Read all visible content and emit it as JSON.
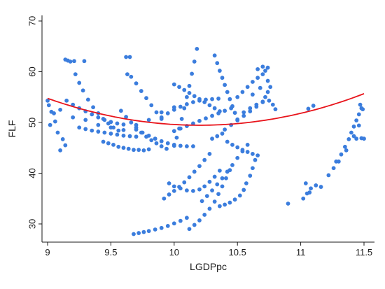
{
  "chart_data": {
    "type": "scatter",
    "title": "",
    "xlabel": "LGDPpc",
    "ylabel": "FLF",
    "xlim": [
      9,
      11.5
    ],
    "ylim": [
      27,
      70
    ],
    "xticks": [
      9,
      9.5,
      10,
      10.5,
      11,
      11.5
    ],
    "yticks": [
      30,
      40,
      50,
      60,
      70
    ],
    "grid": false,
    "legend": "none",
    "colors": {
      "points": "#3b7ddd",
      "fit": "#e8141b",
      "axis": "#1a1a1a"
    },
    "series": [
      {
        "type": "scatter",
        "points": [
          [
            9.0,
            54.3
          ],
          [
            9.01,
            53.4
          ],
          [
            9.03,
            52.1
          ],
          [
            9.05,
            51.8
          ],
          [
            9.06,
            50.2
          ],
          [
            9.08,
            48.0
          ],
          [
            9.1,
            44.5
          ],
          [
            9.12,
            46.7
          ],
          [
            9.14,
            45.5
          ],
          [
            9.02,
            49.5
          ],
          [
            9.14,
            62.4
          ],
          [
            9.16,
            62.2
          ],
          [
            9.18,
            62.0
          ],
          [
            9.21,
            62.1
          ],
          [
            9.29,
            62.1
          ],
          [
            9.22,
            59.5
          ],
          [
            9.25,
            57.8
          ],
          [
            9.28,
            56.3
          ],
          [
            9.32,
            54.5
          ],
          [
            9.36,
            53.0
          ],
          [
            9.4,
            51.8
          ],
          [
            9.44,
            50.7
          ],
          [
            9.48,
            49.8
          ],
          [
            9.52,
            49.0
          ],
          [
            9.56,
            48.4
          ],
          [
            9.15,
            54.3
          ],
          [
            9.2,
            53.5
          ],
          [
            9.25,
            52.8
          ],
          [
            9.3,
            52.2
          ],
          [
            9.35,
            51.6
          ],
          [
            9.4,
            51.0
          ],
          [
            9.45,
            50.5
          ],
          [
            9.5,
            50.1
          ],
          [
            9.55,
            49.8
          ],
          [
            9.6,
            49.6
          ],
          [
            9.62,
            62.9
          ],
          [
            9.65,
            62.9
          ],
          [
            9.63,
            59.5
          ],
          [
            9.66,
            59.0
          ],
          [
            9.7,
            57.7
          ],
          [
            9.74,
            56.2
          ],
          [
            9.78,
            54.8
          ],
          [
            9.82,
            53.4
          ],
          [
            9.86,
            52.0
          ],
          [
            9.9,
            50.7
          ],
          [
            9.58,
            52.3
          ],
          [
            9.62,
            51.1
          ],
          [
            9.66,
            50.0
          ],
          [
            9.7,
            49.0
          ],
          [
            9.74,
            48.0
          ],
          [
            9.78,
            47.2
          ],
          [
            9.82,
            46.5
          ],
          [
            9.86,
            45.9
          ],
          [
            9.9,
            45.3
          ],
          [
            9.94,
            44.8
          ],
          [
            9.44,
            46.2
          ],
          [
            9.48,
            45.9
          ],
          [
            9.52,
            45.6
          ],
          [
            9.56,
            45.2
          ],
          [
            9.6,
            45.0
          ],
          [
            9.64,
            44.8
          ],
          [
            9.68,
            44.6
          ],
          [
            9.72,
            44.6
          ],
          [
            9.76,
            44.5
          ],
          [
            9.8,
            44.7
          ],
          [
            9.68,
            28.0
          ],
          [
            9.72,
            28.2
          ],
          [
            9.76,
            28.4
          ],
          [
            9.8,
            28.6
          ],
          [
            9.85,
            28.9
          ],
          [
            9.9,
            29.2
          ],
          [
            9.95,
            29.6
          ],
          [
            10.0,
            30.1
          ],
          [
            10.05,
            30.6
          ],
          [
            10.1,
            31.2
          ],
          [
            9.92,
            35.0
          ],
          [
            9.96,
            35.8
          ],
          [
            10.0,
            36.5
          ],
          [
            10.04,
            37.3
          ],
          [
            10.08,
            38.2
          ],
          [
            10.12,
            39.2
          ],
          [
            10.16,
            40.3
          ],
          [
            10.2,
            41.4
          ],
          [
            10.24,
            42.6
          ],
          [
            10.28,
            43.8
          ],
          [
            9.96,
            38.0
          ],
          [
            10.0,
            37.4
          ],
          [
            10.05,
            37.0
          ],
          [
            10.1,
            36.6
          ],
          [
            10.15,
            36.5
          ],
          [
            10.2,
            36.8
          ],
          [
            10.24,
            37.4
          ],
          [
            10.28,
            38.3
          ],
          [
            10.32,
            39.3
          ],
          [
            10.36,
            40.5
          ],
          [
            10.22,
            34.5
          ],
          [
            10.26,
            35.5
          ],
          [
            10.3,
            36.6
          ],
          [
            10.34,
            37.8
          ],
          [
            10.38,
            39.0
          ],
          [
            10.42,
            40.3
          ],
          [
            10.46,
            41.6
          ],
          [
            10.5,
            43.0
          ],
          [
            10.54,
            44.3
          ],
          [
            10.58,
            45.6
          ],
          [
            10.36,
            33.5
          ],
          [
            10.4,
            33.8
          ],
          [
            10.44,
            34.2
          ],
          [
            10.48,
            34.8
          ],
          [
            10.52,
            35.6
          ],
          [
            10.55,
            36.7
          ],
          [
            10.57,
            38.0
          ],
          [
            10.6,
            39.5
          ],
          [
            10.62,
            41.0
          ],
          [
            10.64,
            42.6
          ],
          [
            10.12,
            29.0
          ],
          [
            10.16,
            29.8
          ],
          [
            10.2,
            30.7
          ],
          [
            10.24,
            31.8
          ],
          [
            10.28,
            33.0
          ],
          [
            10.32,
            34.4
          ],
          [
            10.35,
            35.9
          ],
          [
            10.38,
            37.4
          ],
          [
            10.41,
            39.0
          ],
          [
            10.44,
            40.6
          ],
          [
            10.18,
            64.5
          ],
          [
            10.16,
            62.0
          ],
          [
            10.14,
            59.6
          ],
          [
            10.12,
            57.2
          ],
          [
            10.1,
            55.0
          ],
          [
            10.08,
            52.8
          ],
          [
            10.06,
            50.7
          ],
          [
            10.04,
            48.8
          ],
          [
            10.02,
            47.0
          ],
          [
            10.0,
            45.4
          ],
          [
            10.32,
            63.2
          ],
          [
            10.34,
            61.7
          ],
          [
            10.36,
            60.2
          ],
          [
            10.38,
            58.8
          ],
          [
            10.4,
            57.4
          ],
          [
            10.42,
            56.0
          ],
          [
            10.44,
            54.6
          ],
          [
            10.46,
            53.2
          ],
          [
            10.48,
            51.9
          ],
          [
            10.5,
            50.6
          ],
          [
            10.0,
            57.5
          ],
          [
            10.04,
            57.0
          ],
          [
            10.08,
            56.4
          ],
          [
            10.12,
            55.8
          ],
          [
            10.16,
            55.2
          ],
          [
            10.2,
            54.6
          ],
          [
            10.24,
            54.0
          ],
          [
            10.28,
            53.4
          ],
          [
            10.32,
            52.8
          ],
          [
            10.36,
            52.2
          ],
          [
            9.9,
            51.0
          ],
          [
            9.95,
            51.8
          ],
          [
            10.0,
            52.5
          ],
          [
            10.05,
            53.1
          ],
          [
            10.1,
            53.6
          ],
          [
            10.15,
            54.0
          ],
          [
            10.2,
            54.3
          ],
          [
            10.25,
            54.5
          ],
          [
            10.3,
            54.6
          ],
          [
            10.35,
            54.7
          ],
          [
            10.0,
            48.3
          ],
          [
            10.05,
            48.8
          ],
          [
            10.1,
            49.3
          ],
          [
            10.15,
            49.8
          ],
          [
            10.2,
            50.3
          ],
          [
            10.25,
            50.8
          ],
          [
            10.3,
            51.3
          ],
          [
            10.35,
            51.8
          ],
          [
            10.4,
            52.3
          ],
          [
            10.45,
            52.8
          ],
          [
            10.4,
            48.6
          ],
          [
            10.45,
            49.5
          ],
          [
            10.5,
            50.4
          ],
          [
            10.55,
            51.3
          ],
          [
            10.6,
            52.2
          ],
          [
            10.65,
            53.1
          ],
          [
            10.7,
            54.0
          ],
          [
            10.72,
            55.0
          ],
          [
            10.74,
            56.0
          ],
          [
            10.76,
            57.0
          ],
          [
            10.5,
            55.0
          ],
          [
            10.54,
            56.0
          ],
          [
            10.58,
            57.0
          ],
          [
            10.62,
            58.0
          ],
          [
            10.66,
            58.8
          ],
          [
            10.7,
            59.5
          ],
          [
            10.72,
            60.2
          ],
          [
            10.74,
            60.8
          ],
          [
            10.66,
            60.5
          ],
          [
            10.7,
            61.0
          ],
          [
            10.55,
            52.0
          ],
          [
            10.6,
            52.8
          ],
          [
            10.65,
            53.5
          ],
          [
            10.7,
            54.1
          ],
          [
            10.75,
            54.3
          ],
          [
            10.78,
            53.5
          ],
          [
            10.8,
            52.6
          ],
          [
            10.62,
            55.5
          ],
          [
            10.68,
            56.8
          ],
          [
            10.74,
            58.2
          ],
          [
            10.42,
            46.2
          ],
          [
            10.46,
            45.6
          ],
          [
            10.5,
            45.1
          ],
          [
            10.54,
            44.6
          ],
          [
            10.58,
            44.2
          ],
          [
            10.62,
            43.8
          ],
          [
            10.66,
            43.5
          ],
          [
            10.3,
            46.8
          ],
          [
            10.34,
            47.3
          ],
          [
            10.38,
            47.8
          ],
          [
            9.7,
            48.6
          ],
          [
            9.75,
            48.0
          ],
          [
            9.8,
            47.4
          ],
          [
            9.85,
            46.8
          ],
          [
            9.9,
            46.3
          ],
          [
            9.95,
            45.9
          ],
          [
            10.0,
            45.6
          ],
          [
            10.05,
            45.4
          ],
          [
            10.1,
            45.3
          ],
          [
            10.15,
            45.3
          ],
          [
            9.25,
            49.0
          ],
          [
            9.3,
            48.7
          ],
          [
            9.35,
            48.4
          ],
          [
            9.4,
            48.2
          ],
          [
            9.45,
            48.0
          ],
          [
            9.5,
            47.8
          ],
          [
            9.55,
            47.6
          ],
          [
            9.6,
            47.4
          ],
          [
            9.65,
            47.3
          ],
          [
            9.7,
            47.2
          ],
          [
            9.1,
            52.5
          ],
          [
            9.2,
            51.0
          ],
          [
            9.3,
            50.5
          ],
          [
            9.4,
            49.5
          ],
          [
            9.5,
            49.0
          ],
          [
            9.6,
            48.5
          ],
          [
            9.7,
            49.5
          ],
          [
            9.8,
            50.5
          ],
          [
            9.9,
            52.0
          ],
          [
            10.0,
            53.0
          ],
          [
            10.9,
            34.0
          ],
          [
            11.02,
            35.0
          ],
          [
            11.05,
            36.0
          ],
          [
            11.08,
            37.0
          ],
          [
            11.12,
            37.6
          ],
          [
            11.16,
            37.3
          ],
          [
            11.04,
            38.0
          ],
          [
            11.06,
            52.7
          ],
          [
            11.1,
            53.3
          ],
          [
            11.07,
            36.2
          ],
          [
            11.22,
            39.6
          ],
          [
            11.26,
            41.0
          ],
          [
            11.28,
            42.3
          ],
          [
            11.32,
            43.7
          ],
          [
            11.35,
            45.2
          ],
          [
            11.38,
            46.7
          ],
          [
            11.4,
            48.0
          ],
          [
            11.42,
            49.2
          ],
          [
            11.44,
            50.4
          ],
          [
            11.46,
            51.6
          ],
          [
            11.47,
            53.5
          ],
          [
            11.48,
            52.8
          ],
          [
            11.44,
            46.8
          ],
          [
            11.48,
            46.9
          ],
          [
            11.5,
            46.8
          ],
          [
            11.3,
            42.3
          ],
          [
            11.36,
            44.5
          ],
          [
            11.42,
            47.3
          ],
          [
            11.46,
            49.4
          ],
          [
            11.49,
            52.6
          ]
        ]
      },
      {
        "type": "fit",
        "name": "quadratic fit",
        "equation": "y = 3.68*(x-10.2)^2 + 49.45"
      }
    ]
  }
}
